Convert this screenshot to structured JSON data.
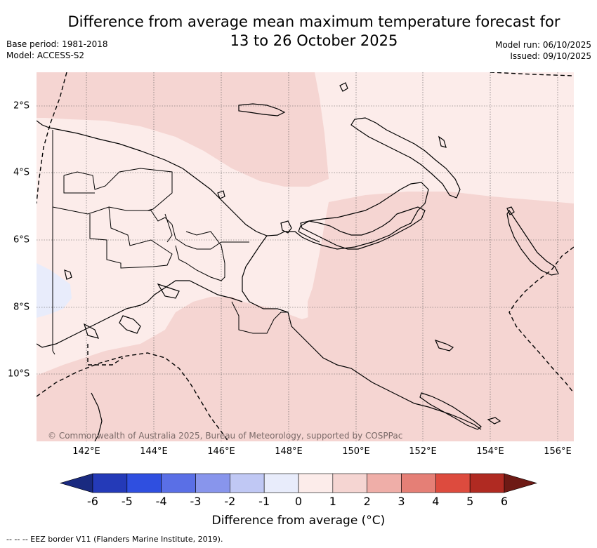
{
  "title_line1": "Difference from average mean maximum temperature forecast for",
  "title_line2": "13 to 26 October 2025",
  "base_period": "Base period: 1981-2018",
  "model": "Model: ACCESS-S2",
  "model_run": "Model run: 06/10/2025",
  "issued": "Issued: 09/10/2025",
  "lon_labels": [
    "142°E",
    "144°E",
    "146°E",
    "148°E",
    "150°E",
    "152°E",
    "154°E",
    "156°E"
  ],
  "lat_labels": [
    "2°S",
    "4°S",
    "6°S",
    "8°S",
    "10°S"
  ],
  "copyright": "© Commonwealth of Australia 2025, Bureau of Meteorology, supported by COSPPac",
  "colorbar": {
    "ticks": [
      "-6",
      "-5",
      "-4",
      "-3",
      "-2",
      "-1",
      "0",
      "1",
      "2",
      "3",
      "4",
      "5",
      "6"
    ],
    "colors": [
      "#1a2a80",
      "#243ab8",
      "#2f4fe0",
      "#5a6fe6",
      "#8895ec",
      "#c0c8f4",
      "#e8ecfb",
      "#fcecea",
      "#f5d5d2",
      "#efaea8",
      "#e57f76",
      "#dd4b3e",
      "#b02a22",
      "#6e1a15"
    ],
    "label": "Difference from average (°C)"
  },
  "footnote": "-- -- -- EEZ border V11 (Flanders Marine Institute, 2019)."
}
